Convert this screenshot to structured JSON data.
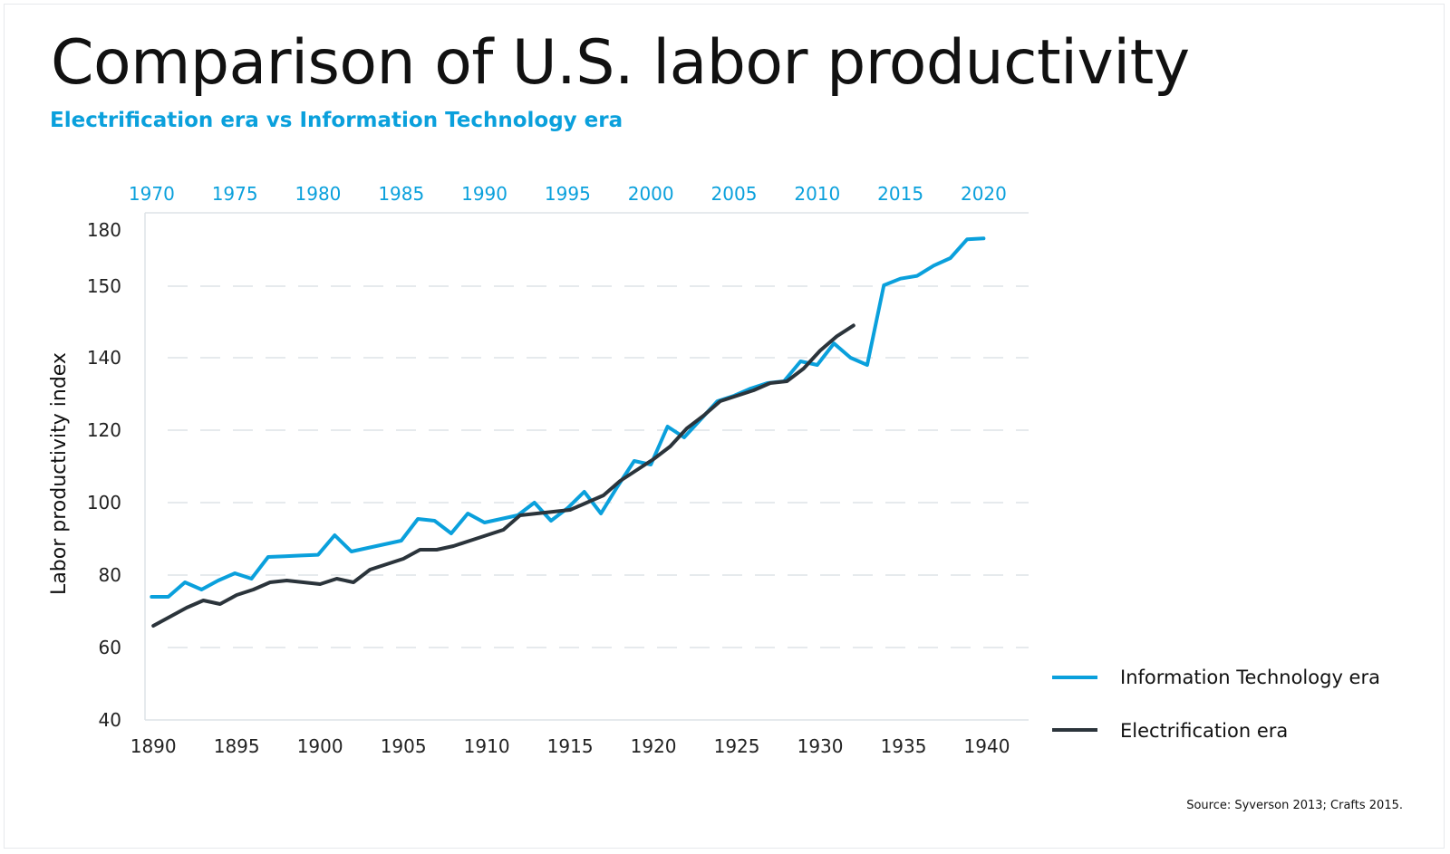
{
  "title": "Comparison of U.S. labor productivity",
  "subtitle": "Electrification era vs Information Technology era",
  "source": "Source: Syverson 2013; Crafts 2015.",
  "colors": {
    "it": "#0aa0dc",
    "electric": "#2b343b",
    "grid": "#dde3e7"
  },
  "chart_data": {
    "type": "line",
    "title": "Comparison of U.S. labor productivity",
    "subtitle": "Electrification era vs Information Technology era",
    "ylabel": "Labor productivity index",
    "y_tick_labels": [
      "180",
      "150",
      "140",
      "120",
      "100",
      "80",
      "60",
      "40"
    ],
    "x_bottom_ticks": [
      "1890",
      "1895",
      "1900",
      "1905",
      "1910",
      "1915",
      "1920",
      "1925",
      "1930",
      "1935",
      "1940"
    ],
    "x_top_ticks": [
      "1970",
      "1975",
      "1980",
      "1985",
      "1990",
      "1995",
      "2000",
      "2005",
      "2010",
      "2015",
      "2020"
    ],
    "xlim_bottom": [
      1889.5,
      1942.5
    ],
    "xlim_top": [
      1969.6,
      2022.7
    ],
    "ylim": [
      40,
      180
    ],
    "grid": "horizontal dashed",
    "legend_position": "bottom-right",
    "series": [
      {
        "name": "Information Technology era",
        "axis": "top",
        "x": [
          1970,
          1971,
          1972,
          1973,
          1974,
          1975,
          1976,
          1977,
          1978,
          1979,
          1980,
          1981,
          1982,
          1983,
          1984,
          1985,
          1986,
          1987,
          1988,
          1989,
          1990,
          1991,
          1992,
          1993,
          1994,
          1995,
          1996,
          1997,
          1998,
          1999,
          2000,
          2001,
          2002,
          2003,
          2004,
          2005,
          2006,
          2007,
          2008,
          2009,
          2010,
          2011,
          2012,
          2013,
          2014,
          2015,
          2016,
          2017,
          2018,
          2019,
          2020
        ],
        "values": [
          74,
          74,
          78,
          76,
          78.5,
          80.5,
          79,
          85,
          85.2,
          85.4,
          85.6,
          91,
          86.5,
          87.5,
          88.5,
          89.5,
          95.5,
          95,
          91.5,
          97,
          94.5,
          95.5,
          96.5,
          100,
          95,
          98.5,
          103,
          97,
          104.5,
          111.5,
          110.5,
          121,
          118,
          123,
          128,
          129.5,
          131.5,
          133,
          133.5,
          139,
          138,
          142,
          140,
          138,
          150.5,
          154,
          155.5,
          161,
          165,
          175,
          175.5
        ]
      },
      {
        "name": "Electrification era",
        "axis": "bottom",
        "x": [
          1890,
          1891,
          1892,
          1893,
          1894,
          1895,
          1896,
          1897,
          1898,
          1899,
          1900,
          1901,
          1902,
          1903,
          1904,
          1905,
          1906,
          1907,
          1908,
          1909,
          1910,
          1911,
          1912,
          1913,
          1914,
          1915,
          1916,
          1917,
          1918,
          1919,
          1920,
          1921,
          1922,
          1923,
          1924,
          1925,
          1926,
          1927,
          1928,
          1929,
          1930,
          1931,
          1932
        ],
        "values": [
          66,
          68.5,
          71,
          73,
          72,
          74.5,
          76,
          78,
          78.5,
          78,
          77.5,
          79,
          78,
          81.5,
          83,
          84.5,
          87,
          87,
          88,
          89.5,
          91,
          92.5,
          96.5,
          97,
          97.5,
          98,
          100,
          102,
          106,
          109,
          112,
          115.5,
          120.5,
          124,
          128,
          129.5,
          131,
          133,
          133.5,
          137,
          141,
          143,
          144.5
        ]
      }
    ]
  }
}
